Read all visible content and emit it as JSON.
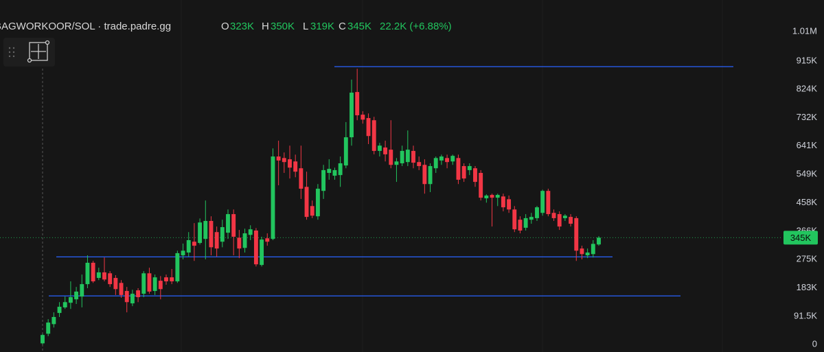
{
  "header": {
    "symbol": "BAGWORKOOR/SOL · trade.padre.gg",
    "open_label": "O",
    "open": "323K",
    "high_label": "H",
    "high": "350K",
    "low_label": "L",
    "low": "319K",
    "close_label": "C",
    "close": "345K",
    "change": "22.2K (+6.88%)"
  },
  "chart_data": {
    "type": "candlestick",
    "up_color": "#22c55e",
    "down_color": "#f23645",
    "ylim": [
      -24000,
      1112000
    ],
    "yticks": [
      {
        "value": 1010000,
        "label": "1.01M"
      },
      {
        "value": 915000,
        "label": "915K"
      },
      {
        "value": 824000,
        "label": "824K"
      },
      {
        "value": 732000,
        "label": "732K"
      },
      {
        "value": 641000,
        "label": "641K"
      },
      {
        "value": 549000,
        "label": "549K"
      },
      {
        "value": 458000,
        "label": "458K"
      },
      {
        "value": 366000,
        "label": "366K"
      },
      {
        "value": 275000,
        "label": "275K"
      },
      {
        "value": 183000,
        "label": "183K"
      },
      {
        "value": 91500,
        "label": "91.5K"
      },
      0
    ],
    "last_price": {
      "value": 345000,
      "label": "345K"
    },
    "drawings": [
      {
        "value": 897000,
        "color": "#2962ff"
      },
      {
        "value": 283000,
        "color": "#2962ff"
      },
      {
        "value": 157000,
        "color": "#2962ff"
      }
    ],
    "open": [
      4000,
      35000,
      66000,
      102000,
      120000,
      135000,
      146000,
      155000,
      195000,
      264000,
      215000,
      233000,
      230000,
      215000,
      199000,
      173000,
      133000,
      175000,
      164000,
      230000,
      173000,
      206000,
      217000,
      217000,
      204000,
      288000,
      297000,
      332000,
      328000,
      341000,
      399000,
      363000,
      332000,
      361000,
      421000,
      345000,
      312000,
      354000,
      368000,
      257000,
      343000,
      341000,
      607000,
      602000,
      598000,
      591000,
      569000,
      509000,
      447000,
      414000,
      496000,
      554000,
      545000,
      547000,
      578000,
      669000,
      815000,
      742000,
      731000,
      724000,
      625000,
      636000,
      629000,
      580000,
      585000,
      589000,
      625000,
      589000,
      580000,
      518000,
      569000,
      594000,
      602000,
      591000,
      602000,
      576000,
      563000,
      569000,
      554000,
      472000,
      483000,
      474000,
      478000,
      469000,
      436000,
      403000,
      377000,
      403000,
      408000,
      425000,
      496000,
      425000,
      421000,
      408000,
      412000,
      408000,
      310000,
      288000,
      292000,
      323000
    ],
    "high": [
      35000,
      82000,
      104000,
      137000,
      155000,
      204000,
      186000,
      226000,
      288000,
      270000,
      248000,
      281000,
      237000,
      224000,
      208000,
      186000,
      177000,
      182000,
      237000,
      248000,
      226000,
      221000,
      226000,
      244000,
      303000,
      326000,
      363000,
      392000,
      407000,
      465000,
      414000,
      381000,
      403000,
      436000,
      436000,
      370000,
      374000,
      385000,
      376000,
      348000,
      359000,
      633000,
      658000,
      620000,
      642000,
      613000,
      642000,
      558000,
      465000,
      518000,
      580000,
      598000,
      571000,
      607000,
      718000,
      855000,
      890000,
      753000,
      746000,
      735000,
      651000,
      658000,
      724000,
      602000,
      642000,
      691000,
      642000,
      607000,
      598000,
      585000,
      607000,
      613000,
      613000,
      613000,
      613000,
      585000,
      585000,
      576000,
      563000,
      485000,
      487000,
      487000,
      487000,
      481000,
      447000,
      414000,
      421000,
      425000,
      447000,
      500000,
      503000,
      436000,
      430000,
      421000,
      421000,
      414000,
      319000,
      310000,
      337000,
      350000
    ],
    "low": [
      0,
      27000,
      55000,
      89000,
      115000,
      115000,
      131000,
      120000,
      182000,
      199000,
      208000,
      204000,
      186000,
      160000,
      151000,
      104000,
      124000,
      137000,
      153000,
      164000,
      160000,
      146000,
      193000,
      195000,
      199000,
      275000,
      284000,
      270000,
      323000,
      275000,
      288000,
      284000,
      314000,
      341000,
      288000,
      279000,
      297000,
      337000,
      252000,
      252000,
      319000,
      337000,
      514000,
      554000,
      536000,
      540000,
      470000,
      403000,
      408000,
      403000,
      470000,
      532000,
      532000,
      509000,
      569000,
      642000,
      724000,
      713000,
      647000,
      614000,
      607000,
      591000,
      569000,
      525000,
      576000,
      576000,
      569000,
      563000,
      487000,
      492000,
      554000,
      580000,
      569000,
      580000,
      518000,
      525000,
      547000,
      509000,
      465000,
      458000,
      381000,
      447000,
      430000,
      425000,
      363000,
      359000,
      368000,
      390000,
      399000,
      416000,
      414000,
      399000,
      370000,
      399000,
      381000,
      270000,
      275000,
      279000,
      281000,
      319000
    ],
    "close": [
      31000,
      71000,
      89000,
      122000,
      137000,
      153000,
      171000,
      195000,
      264000,
      204000,
      233000,
      210000,
      195000,
      179000,
      160000,
      137000,
      164000,
      153000,
      230000,
      171000,
      217000,
      179000,
      204000,
      204000,
      295000,
      303000,
      337000,
      319000,
      394000,
      399000,
      314000,
      310000,
      379000,
      421000,
      348000,
      310000,
      359000,
      372000,
      259000,
      339000,
      332000,
      607000,
      594000,
      589000,
      571000,
      558000,
      503000,
      412000,
      416000,
      503000,
      563000,
      567000,
      563000,
      585000,
      669000,
      813000,
      740000,
      726000,
      673000,
      625000,
      642000,
      614000,
      580000,
      591000,
      625000,
      629000,
      587000,
      576000,
      518000,
      576000,
      602000,
      607000,
      589000,
      609000,
      532000,
      536000,
      576000,
      525000,
      474000,
      481000,
      474000,
      483000,
      443000,
      436000,
      372000,
      368000,
      408000,
      412000,
      443000,
      496000,
      421000,
      408000,
      381000,
      416000,
      390000,
      303000,
      292000,
      297000,
      325000,
      345000
    ]
  }
}
